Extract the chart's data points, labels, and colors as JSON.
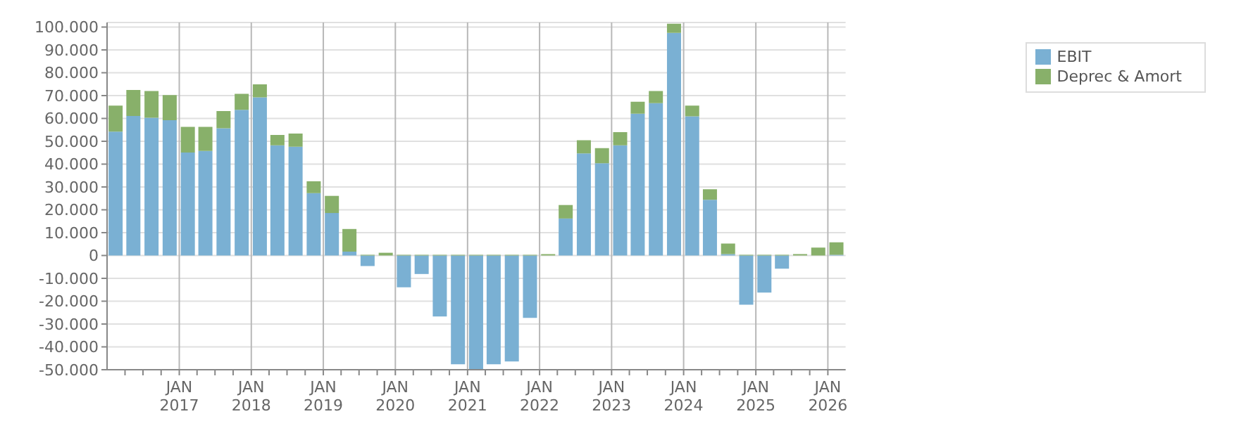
{
  "chart_data": {
    "type": "bar",
    "stacked": true,
    "x": [
      "2016-02-15",
      "2016-05-15",
      "2016-08-15",
      "2016-11-15",
      "2017-02-15",
      "2017-05-15",
      "2017-08-15",
      "2017-11-15",
      "2018-02-15",
      "2018-05-15",
      "2018-08-15",
      "2018-11-15",
      "2019-02-15",
      "2019-05-15",
      "2019-08-15",
      "2019-11-15",
      "2020-02-15",
      "2020-05-15",
      "2020-08-15",
      "2020-11-15",
      "2021-02-15",
      "2021-05-15",
      "2021-08-15",
      "2021-11-15",
      "2022-02-15",
      "2022-05-15",
      "2022-08-15",
      "2022-11-15",
      "2023-02-15",
      "2023-05-15",
      "2023-08-15",
      "2023-11-15",
      "2024-02-15",
      "2024-05-15",
      "2024-08-15",
      "2024-11-15",
      "2025-02-15",
      "2025-05-15",
      "2025-08-15",
      "2025-11-15",
      "2026-02-15"
    ],
    "series": [
      {
        "name": "EBIT",
        "color": "#7ab0d3",
        "values": [
          54200,
          61100,
          60300,
          59200,
          45100,
          45800,
          55700,
          63800,
          69200,
          48200,
          47600,
          27300,
          18600,
          1700,
          -4600,
          0,
          -13900,
          -8100,
          -26700,
          -47600,
          -49900,
          -47600,
          -46400,
          -27300,
          0,
          16200,
          44700,
          40400,
          48200,
          62100,
          66700,
          97500,
          60900,
          24400,
          600,
          -21500,
          -16200,
          -5800,
          0,
          0,
          300
        ]
      },
      {
        "name": "Deprec & Amort",
        "color": "#88b06a",
        "values": [
          11400,
          11400,
          11700,
          11000,
          11200,
          10500,
          7500,
          7000,
          5700,
          4600,
          5800,
          5200,
          7500,
          9900,
          300,
          1200,
          300,
          300,
          300,
          300,
          300,
          300,
          300,
          300,
          600,
          5900,
          5800,
          6600,
          5800,
          5200,
          5300,
          4000,
          4700,
          4600,
          4600,
          300,
          300,
          300,
          600,
          3500,
          5500
        ]
      }
    ],
    "xlim": [
      "2016-01-01",
      "2026-04-01"
    ],
    "xticks": [
      {
        "value": "2016-04-01",
        "label": null
      },
      {
        "value": "2016-07-01",
        "label": null
      },
      {
        "value": "2016-10-01",
        "label": null
      },
      {
        "value": "2017-01-01",
        "label": "JAN 2017"
      },
      {
        "value": "2017-04-01",
        "label": null
      },
      {
        "value": "2017-07-01",
        "label": null
      },
      {
        "value": "2017-10-01",
        "label": null
      },
      {
        "value": "2018-01-01",
        "label": "JAN 2018"
      },
      {
        "value": "2018-04-01",
        "label": null
      },
      {
        "value": "2018-07-01",
        "label": null
      },
      {
        "value": "2018-10-01",
        "label": null
      },
      {
        "value": "2019-01-01",
        "label": "JAN 2019"
      },
      {
        "value": "2019-04-01",
        "label": null
      },
      {
        "value": "2019-07-01",
        "label": null
      },
      {
        "value": "2019-10-01",
        "label": null
      },
      {
        "value": "2020-01-01",
        "label": "JAN 2020"
      },
      {
        "value": "2020-04-01",
        "label": null
      },
      {
        "value": "2020-07-01",
        "label": null
      },
      {
        "value": "2020-10-01",
        "label": null
      },
      {
        "value": "2021-01-01",
        "label": "JAN 2021"
      },
      {
        "value": "2021-04-01",
        "label": null
      },
      {
        "value": "2021-07-01",
        "label": null
      },
      {
        "value": "2021-10-01",
        "label": null
      },
      {
        "value": "2022-01-01",
        "label": "JAN 2022"
      },
      {
        "value": "2022-04-01",
        "label": null
      },
      {
        "value": "2022-07-01",
        "label": null
      },
      {
        "value": "2022-10-01",
        "label": null
      },
      {
        "value": "2023-01-01",
        "label": "JAN 2023"
      },
      {
        "value": "2023-04-01",
        "label": null
      },
      {
        "value": "2023-07-01",
        "label": null
      },
      {
        "value": "2023-10-01",
        "label": null
      },
      {
        "value": "2024-01-01",
        "label": "JAN 2024"
      },
      {
        "value": "2024-04-01",
        "label": null
      },
      {
        "value": "2024-07-01",
        "label": null
      },
      {
        "value": "2024-10-01",
        "label": null
      },
      {
        "value": "2025-01-01",
        "label": "JAN 2025"
      },
      {
        "value": "2025-04-01",
        "label": null
      },
      {
        "value": "2025-07-01",
        "label": null
      },
      {
        "value": "2025-10-01",
        "label": null
      },
      {
        "value": "2026-01-01",
        "label": "JAN 2026"
      }
    ],
    "ylim": [
      -50000,
      102000
    ],
    "yticks": [
      {
        "value": -50000,
        "label": "-50.000"
      },
      {
        "value": -40000,
        "label": "-40.000"
      },
      {
        "value": -30000,
        "label": "-30.000"
      },
      {
        "value": -20000,
        "label": "-20.000"
      },
      {
        "value": -10000,
        "label": "-10.000"
      },
      {
        "value": 0,
        "label": "0"
      },
      {
        "value": 10000,
        "label": "10.000"
      },
      {
        "value": 20000,
        "label": "20.000"
      },
      {
        "value": 30000,
        "label": "30.000"
      },
      {
        "value": 40000,
        "label": "40.000"
      },
      {
        "value": 50000,
        "label": "50.000"
      },
      {
        "value": 60000,
        "label": "60.000"
      },
      {
        "value": 70000,
        "label": "70.000"
      },
      {
        "value": 80000,
        "label": "80.000"
      },
      {
        "value": 90000,
        "label": "90.000"
      },
      {
        "value": 100000,
        "label": "100.000"
      }
    ],
    "grid": true,
    "legend": "top right"
  }
}
